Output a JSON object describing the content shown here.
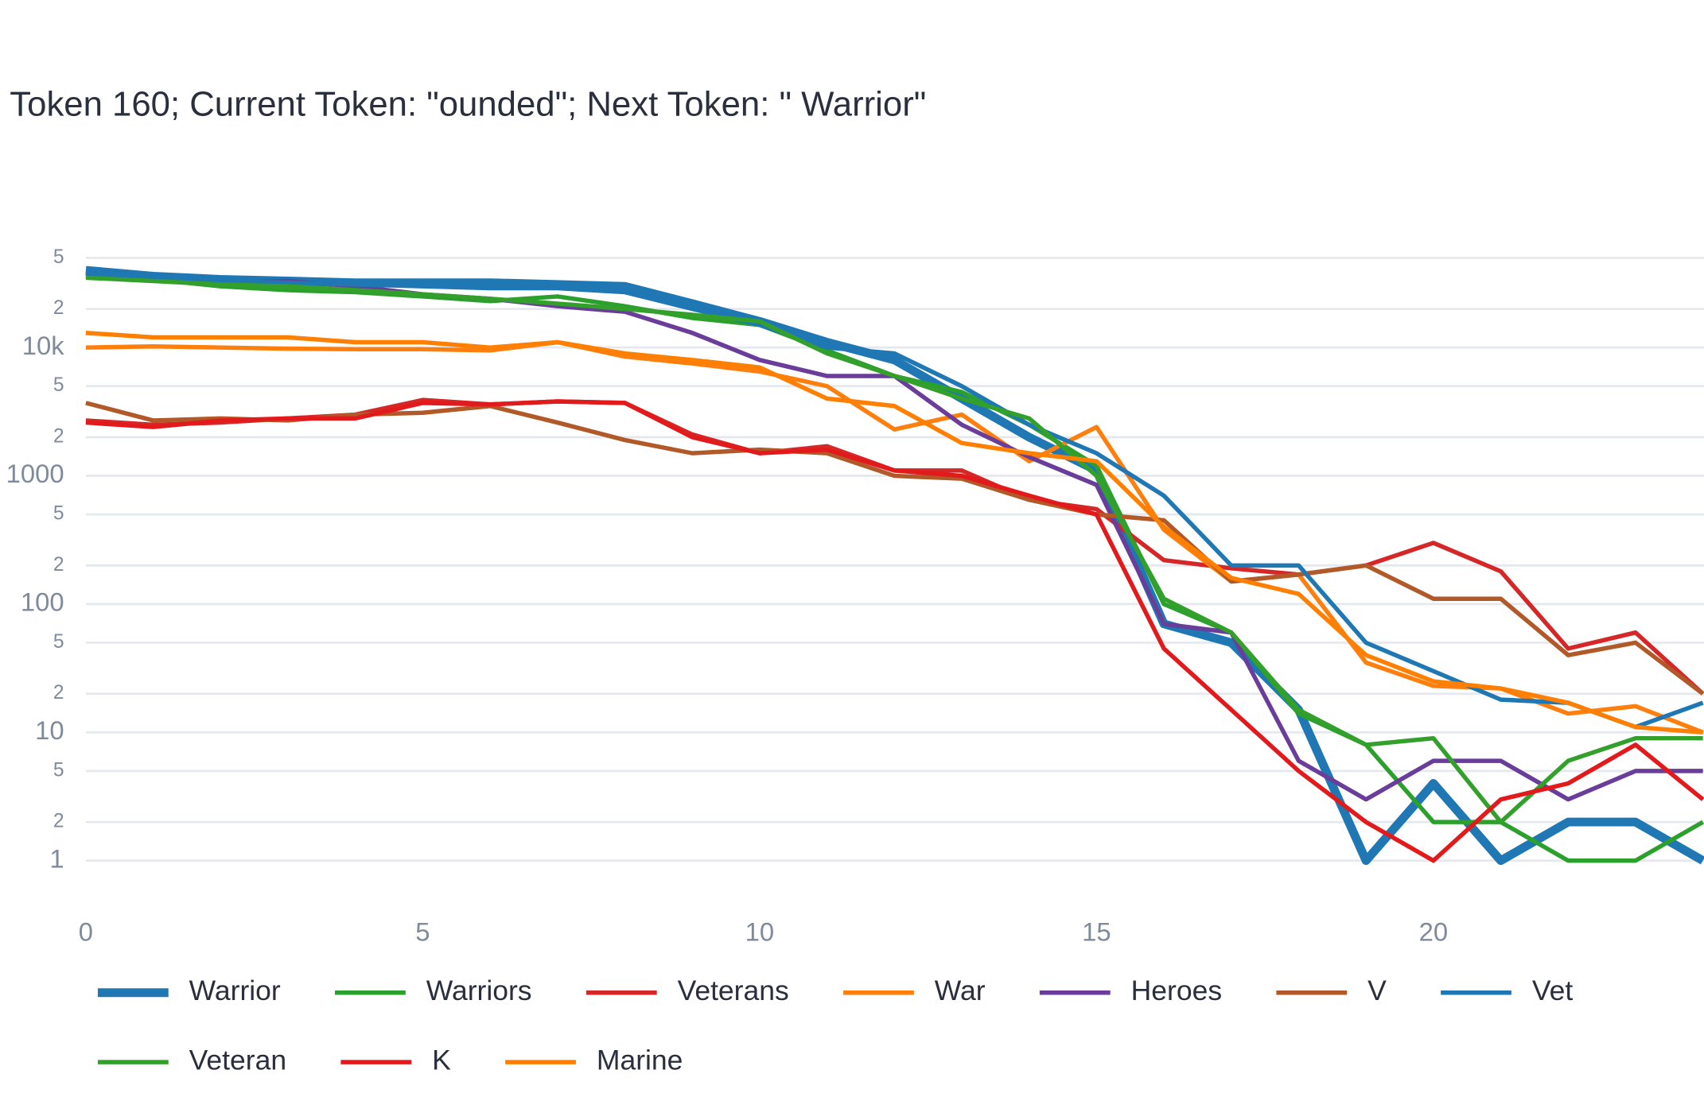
{
  "chart_data": {
    "type": "line",
    "title": "Token 160; Current Token: \"ounded\"; Next Token: \" Warrior\"",
    "log_y": true,
    "grid": true,
    "xlim": [
      0,
      24
    ],
    "xticks": [
      0,
      5,
      10,
      15,
      20
    ],
    "ylim": [
      0.5,
      60000
    ],
    "yticks": [
      1,
      {
        "value": 2,
        "label": "2"
      },
      {
        "value": 5,
        "label": "5"
      },
      10,
      {
        "value": 20,
        "label": "2"
      },
      {
        "value": 50,
        "label": "5"
      },
      100,
      {
        "value": 200,
        "label": "2"
      },
      {
        "value": 500,
        "label": "5"
      },
      1000,
      {
        "value": 2000,
        "label": "2"
      },
      {
        "value": 5000,
        "label": "5"
      },
      {
        "value": 10000,
        "label": "10k"
      },
      {
        "value": 20000,
        "label": "2"
      },
      {
        "value": 50000,
        "label": "5"
      }
    ],
    "x": [
      0,
      1,
      2,
      3,
      4,
      5,
      6,
      7,
      8,
      9,
      10,
      11,
      12,
      13,
      14,
      15,
      16,
      17,
      18,
      19,
      20,
      21,
      22,
      23,
      24
    ],
    "series": [
      {
        "name": "Warrior",
        "color": "#1f77b4",
        "line_width": 8,
        "values": [
          40000,
          36000,
          34000,
          33000,
          32000,
          32000,
          32000,
          31000,
          30000,
          22000,
          16000,
          11000,
          8000,
          4000,
          2000,
          1100,
          70,
          50,
          15,
          1,
          4,
          1,
          2,
          2,
          1
        ]
      },
      {
        "name": "Warriors",
        "color": "#2ca02c",
        "line_width": 4,
        "values": [
          36000,
          34000,
          30000,
          28000,
          27000,
          25000,
          23000,
          25000,
          21000,
          17000,
          15000,
          9500,
          6000,
          4500,
          2500,
          1200,
          100,
          60,
          14,
          8,
          2,
          2,
          1,
          1,
          2
        ]
      },
      {
        "name": "Veterans",
        "color": "#d62728",
        "line_width": 4,
        "values": [
          2700,
          2500,
          2600,
          2800,
          3000,
          3900,
          3600,
          3800,
          3700,
          2100,
          1500,
          1700,
          1100,
          1100,
          650,
          550,
          220,
          190,
          170,
          200,
          300,
          180,
          45,
          60,
          20
        ]
      },
      {
        "name": "War",
        "color": "#ff7f0e",
        "line_width": 4,
        "values": [
          10000,
          10200,
          10000,
          9800,
          9700,
          9700,
          9500,
          11000,
          8500,
          7500,
          6500,
          5000,
          2300,
          3000,
          1300,
          2400,
          380,
          150,
          170,
          35,
          23,
          22,
          14,
          16,
          10
        ]
      },
      {
        "name": "Heroes",
        "color": "#6a3d9a",
        "line_width": 4,
        "values": [
          37000,
          34000,
          32000,
          33000,
          30000,
          26000,
          24000,
          21000,
          19000,
          13000,
          8000,
          6000,
          6000,
          2500,
          1400,
          850,
          70,
          60,
          6,
          3,
          6,
          6,
          3,
          5,
          5
        ]
      },
      {
        "name": "V",
        "color": "#b15928",
        "line_width": 4,
        "values": [
          3700,
          2700,
          2800,
          2700,
          3000,
          3100,
          3500,
          2600,
          1900,
          1500,
          1600,
          1500,
          1000,
          950,
          650,
          500,
          450,
          150,
          170,
          200,
          110,
          110,
          40,
          50,
          20
        ]
      },
      {
        "name": "Vet",
        "color": "#1f78b4",
        "line_width": 4,
        "values": [
          38000,
          35000,
          33000,
          32000,
          31000,
          30000,
          29000,
          29000,
          27000,
          20000,
          15000,
          10000,
          9000,
          5000,
          2500,
          1500,
          700,
          200,
          200,
          50,
          30,
          18,
          17,
          11,
          17
        ]
      },
      {
        "name": "Veteran",
        "color": "#33a02c",
        "line_width": 4,
        "values": [
          35000,
          33000,
          31000,
          30000,
          28000,
          26000,
          24000,
          22000,
          20000,
          18000,
          16000,
          9000,
          6000,
          4000,
          2800,
          1000,
          110,
          60,
          15,
          8,
          9,
          2,
          6,
          9,
          9
        ]
      },
      {
        "name": "K",
        "color": "#e31a1c",
        "line_width": 4,
        "values": [
          2600,
          2400,
          2700,
          2800,
          2800,
          3700,
          3600,
          3800,
          3700,
          2000,
          1500,
          1600,
          1100,
          1000,
          700,
          500,
          45,
          15,
          5,
          2,
          1,
          3,
          4,
          8,
          3
        ]
      },
      {
        "name": "Marine",
        "color": "#ff7f00",
        "line_width": 4,
        "values": [
          13000,
          12000,
          12000,
          12000,
          11000,
          11000,
          10000,
          11000,
          9000,
          8000,
          7000,
          4000,
          3500,
          1800,
          1500,
          1300,
          400,
          160,
          120,
          40,
          25,
          22,
          17,
          11,
          10
        ]
      }
    ]
  }
}
